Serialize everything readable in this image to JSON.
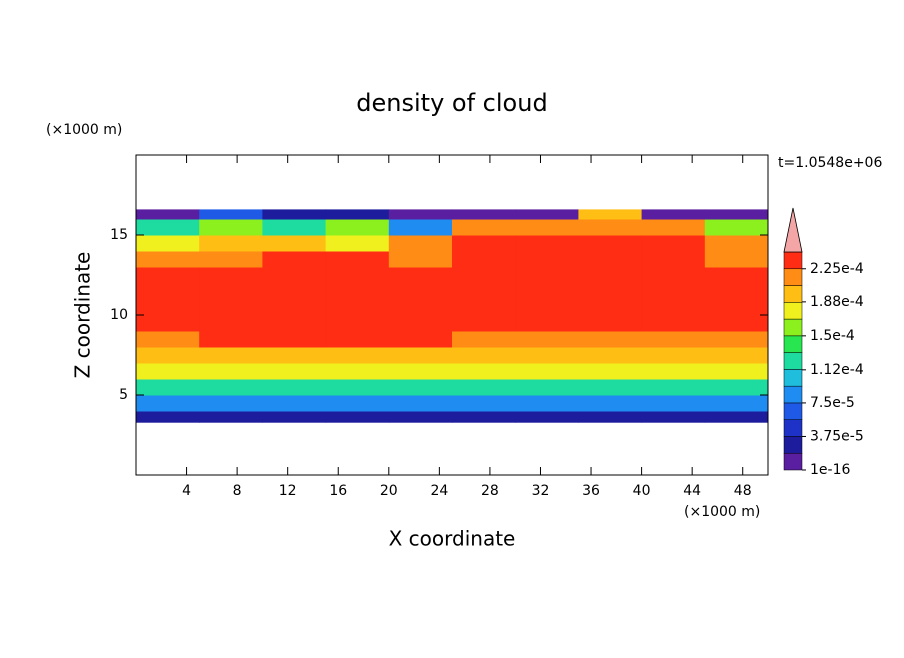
{
  "chart_data": {
    "type": "contour",
    "title": "density of cloud",
    "x_label": "X coordinate",
    "y_label": "Z coordinate",
    "x_unit": "(×1000 m)",
    "y_unit": "(×1000 m)",
    "time_label": "t=1.0548e+06",
    "xlim": [
      0,
      50
    ],
    "xticks": [
      4,
      8,
      12,
      16,
      20,
      24,
      28,
      32,
      36,
      40,
      44,
      48
    ],
    "ylim": [
      0,
      20
    ],
    "yticks": [
      5,
      10,
      15
    ],
    "x_edges": [
      0,
      5,
      10,
      15,
      20,
      25,
      30,
      35,
      40,
      45,
      50
    ],
    "z_edges": [
      3.3,
      4,
      5,
      6,
      7,
      8,
      9,
      10,
      11,
      12,
      13,
      14,
      15,
      16,
      16.6
    ],
    "values": [
      [
        3e-05,
        3e-05,
        3e-05,
        3e-05,
        3e-05,
        3e-05,
        3e-05,
        3e-05,
        3e-05,
        3e-05
      ],
      [
        9e-05,
        9e-05,
        9e-05,
        9e-05,
        9e-05,
        9e-05,
        9e-05,
        9e-05,
        9e-05,
        9e-05
      ],
      [
        0.00013,
        0.00013,
        0.00013,
        0.00013,
        0.00013,
        0.00013,
        0.00013,
        0.00013,
        0.00013,
        0.00013
      ],
      [
        0.00017,
        0.00017,
        0.00017,
        0.00017,
        0.00017,
        0.00017,
        0.00017,
        0.00017,
        0.00017,
        0.00017
      ],
      [
        0.0002,
        0.0002,
        0.0002,
        0.0002,
        0.0002,
        0.0002,
        0.0002,
        0.0002,
        0.0002,
        0.0002
      ],
      [
        0.00022,
        0.00023,
        0.00023,
        0.00023,
        0.00023,
        0.00022,
        0.00022,
        0.00022,
        0.00022,
        0.00022
      ],
      [
        0.000235,
        0.000235,
        0.000235,
        0.000235,
        0.000235,
        0.000235,
        0.000235,
        0.000235,
        0.000235,
        0.000235
      ],
      [
        0.000235,
        0.000235,
        0.000235,
        0.000235,
        0.000235,
        0.000235,
        0.000235,
        0.000235,
        0.000235,
        0.000235
      ],
      [
        0.000235,
        0.000235,
        0.000235,
        0.000235,
        0.000235,
        0.000235,
        0.000235,
        0.000235,
        0.000235,
        0.000235
      ],
      [
        0.000235,
        0.000235,
        0.000235,
        0.000235,
        0.000235,
        0.000235,
        0.000235,
        0.000235,
        0.000235,
        0.000235
      ],
      [
        0.00022,
        0.00022,
        0.000235,
        0.00023,
        0.00022,
        0.000235,
        0.000235,
        0.000235,
        0.000235,
        0.00022
      ],
      [
        0.00018,
        0.00019,
        0.0002,
        0.00018,
        0.00021,
        0.00023,
        0.00023,
        0.00023,
        0.00023,
        0.00021
      ],
      [
        0.00012,
        0.00015,
        0.00013,
        0.00016,
        8e-05,
        0.00021,
        0.00022,
        0.00022,
        0.00022,
        0.00016
      ],
      [
        1e-05,
        6e-05,
        3e-05,
        2e-05,
        1e-05,
        1e-05,
        1e-05,
        0.00019,
        1e-05,
        1e-05
      ]
    ],
    "levels": [
      0,
      1.875e-05,
      3.75e-05,
      5.625e-05,
      7.5e-05,
      9.375e-05,
      0.0001125,
      0.00013125,
      0.00015,
      0.00016875,
      0.0001875,
      0.00020625,
      0.000225,
      0.00024375
    ],
    "colors": [
      "#5a1ea0",
      "#1c1c9c",
      "#1e32c8",
      "#1e5ae6",
      "#1e8cf0",
      "#1ebedc",
      "#1edca0",
      "#28e650",
      "#8cf01e",
      "#f0f01e",
      "#ffbe14",
      "#ff8c14",
      "#ff2d14"
    ],
    "extend_color": "#f4a6a6",
    "colorbar_ticks": [
      {
        "value": 1e-16,
        "label": "1e-16"
      },
      {
        "value": 3.75e-05,
        "label": "3.75e-5"
      },
      {
        "value": 7.5e-05,
        "label": "7.5e-5"
      },
      {
        "value": 0.000112,
        "label": "1.12e-4"
      },
      {
        "value": 0.00015,
        "label": "1.5e-4"
      },
      {
        "value": 0.000188,
        "label": "1.88e-4"
      },
      {
        "value": 0.000225,
        "label": "2.25e-4"
      }
    ]
  }
}
